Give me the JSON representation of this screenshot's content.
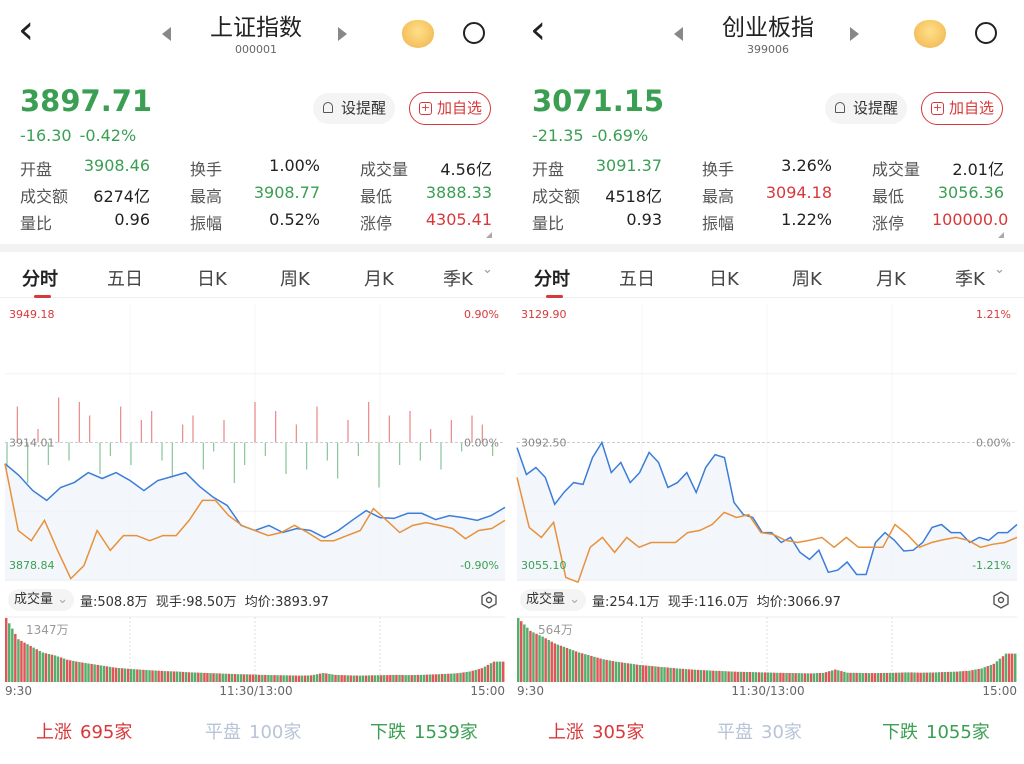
{
  "colors": {
    "up": "#d9383a",
    "down": "#3a9f52",
    "price_line": "#3b7dd8",
    "avg_line": "#e8913a",
    "flat": "#aab4c6"
  },
  "panels": [
    {
      "header": {
        "title": "上证指数",
        "code": "000001",
        "back_icon": "‹"
      },
      "quote": {
        "price": "3897.71",
        "change": "-16.30",
        "change_pct": "-0.42%"
      },
      "buttons": {
        "remind": "设提醒",
        "add_fav": "加自选",
        "plus": "+"
      },
      "stats": [
        [
          {
            "label": "开盘",
            "value": "3908.46",
            "color": "down"
          },
          {
            "label": "换手",
            "value": "1.00%",
            "color": "flat"
          },
          {
            "label": "成交量",
            "value": "4.56亿",
            "color": "flat"
          }
        ],
        [
          {
            "label": "成交额",
            "value": "6274亿",
            "color": "flat"
          },
          {
            "label": "最高",
            "value": "3908.77",
            "color": "down"
          },
          {
            "label": "最低",
            "value": "3888.33",
            "color": "down"
          }
        ],
        [
          {
            "label": "量比",
            "value": "0.96",
            "color": "flat"
          },
          {
            "label": "振幅",
            "value": "0.52%",
            "color": "flat"
          },
          {
            "label": "涨停",
            "value": "4305.41",
            "color": "up"
          }
        ]
      ],
      "tabs": [
        "分时",
        "五日",
        "日K",
        "周K",
        "月K",
        "季K"
      ],
      "volume_header": {
        "selector": "成交量",
        "info": "量:508.8万  现手:98.50万  均价:3893.97"
      },
      "breadth": {
        "up_label": "上涨",
        "up_count": "695家",
        "flat_label": "平盘",
        "flat_count": "100家",
        "down_label": "下跌",
        "down_count": "1539家"
      },
      "chart_data": {
        "type": "line",
        "y_top_label": "3949.18",
        "y_mid_label": "3914.01",
        "y_bottom_label": "3878.84",
        "pct_top_label": "0.90%",
        "pct_mid_label": "0.00%",
        "pct_bottom_label": "-0.90%",
        "ylim": [
          3878.84,
          3949.18
        ],
        "prev_close": 3914.01,
        "x_labels": [
          "9:30",
          "11:30/13:00",
          "15:00"
        ],
        "series": [
          {
            "values": [
              3908.6,
              3905.6,
              3901.7,
              3899.2,
              3902.5,
              3903.8,
              3906.3,
              3904.8,
              3906.3,
              3904.3,
              3901.7,
              3904.3,
              3905.3,
              3906.3,
              3902.8,
              3900.0,
              3897.9,
              3892.8,
              3891.5,
              3892.8,
              3891.0,
              3892.0,
              3891.5,
              3889.7,
              3891.5,
              3894.1,
              3896.6,
              3894.8,
              3894.6,
              3895.9,
              3895.9,
              3894.3,
              3895.3,
              3894.8,
              3894.1,
              3895.3,
              3897.4
            ]
          },
          {
            "values": [
              3908.6,
              3891.5,
              3888.9,
              3894.1,
              3886.4,
              3879.2,
              3882.5,
              3891.5,
              3886.4,
              3890.2,
              3890.2,
              3888.9,
              3890.2,
              3890.2,
              3894.1,
              3899.2,
              3899.2,
              3895.3,
              3892.8,
              3891.5,
              3890.2,
              3891.0,
              3892.8,
              3891.0,
              3888.9,
              3888.9,
              3890.2,
              3891.5,
              3897.1,
              3894.1,
              3891.0,
              3892.8,
              3893.5,
              3892.8,
              3892.0,
              3889.4,
              3891.5,
              3892.0,
              3894.1
            ]
          }
        ],
        "breadth_bars": [
          -6,
          8,
          -9,
          3,
          -5,
          10,
          -4,
          9,
          6,
          -7,
          -3,
          8,
          -5,
          5,
          7,
          -4,
          -8,
          4,
          6,
          -6,
          -2,
          5,
          -9,
          -5,
          9,
          -3,
          7,
          -7,
          4,
          -6,
          8,
          -4,
          -8,
          5,
          -3,
          9,
          -10,
          6,
          -5,
          7,
          -4,
          3,
          -6,
          5,
          -2,
          6,
          4,
          -3
        ],
        "volume": {
          "max_label": "1347万",
          "values": [
            1347,
            900,
            760,
            620,
            560,
            470,
            420,
            380,
            340,
            300,
            280,
            260,
            245,
            230,
            220,
            205,
            195,
            185,
            175,
            165,
            160,
            150,
            145,
            140,
            135,
            140,
            190,
            150,
            140,
            135,
            140,
            145,
            150,
            145,
            150,
            160,
            170,
            185,
            220,
            290,
            430
          ]
        }
      }
    },
    {
      "header": {
        "title": "创业板指",
        "code": "399006",
        "back_icon": "‹"
      },
      "quote": {
        "price": "3071.15",
        "change": "-21.35",
        "change_pct": "-0.69%"
      },
      "buttons": {
        "remind": "设提醒",
        "add_fav": "加自选",
        "plus": "+"
      },
      "stats": [
        [
          {
            "label": "开盘",
            "value": "3091.37",
            "color": "down"
          },
          {
            "label": "换手",
            "value": "3.26%",
            "color": "flat"
          },
          {
            "label": "成交量",
            "value": "2.01亿",
            "color": "flat"
          }
        ],
        [
          {
            "label": "成交额",
            "value": "4518亿",
            "color": "flat"
          },
          {
            "label": "最高",
            "value": "3094.18",
            "color": "up"
          },
          {
            "label": "最低",
            "value": "3056.36",
            "color": "down"
          }
        ],
        [
          {
            "label": "量比",
            "value": "0.93",
            "color": "flat"
          },
          {
            "label": "振幅",
            "value": "1.22%",
            "color": "flat"
          },
          {
            "label": "涨停",
            "value": "100000.0",
            "color": "up"
          }
        ]
      ],
      "tabs": [
        "分时",
        "五日",
        "日K",
        "周K",
        "月K",
        "季K"
      ],
      "volume_header": {
        "selector": "成交量",
        "info": "量:254.1万  现手:116.0万  均价:3066.97"
      },
      "breadth": {
        "up_label": "上涨",
        "up_count": "305家",
        "flat_label": "平盘",
        "flat_count": "30家",
        "down_label": "下跌",
        "down_count": "1055家"
      },
      "chart_data": {
        "type": "line",
        "y_top_label": "3129.90",
        "y_mid_label": "3092.50",
        "y_bottom_label": "3055.10",
        "pct_top_label": "1.21%",
        "pct_mid_label": "0.00%",
        "pct_bottom_label": "-1.21%",
        "ylim": [
          3055.1,
          3129.9
        ],
        "prev_close": 3092.5,
        "x_labels": [
          "9:30",
          "11:30/13:00",
          "15:00"
        ],
        "series": [
          {
            "values": [
              3091.1,
              3083.8,
              3085.7,
              3083.0,
              3075.7,
              3079.0,
              3081.6,
              3081.1,
              3088.4,
              3092.5,
              3084.3,
              3087.1,
              3081.6,
              3084.3,
              3089.8,
              3087.1,
              3080.3,
              3081.6,
              3084.3,
              3078.9,
              3085.7,
              3089.2,
              3088.4,
              3076.2,
              3072.9,
              3072.1,
              3068.0,
              3068.0,
              3065.3,
              3066.7,
              3062.6,
              3060.7,
              3063.2,
              3057.2,
              3057.8,
              3060.0,
              3056.6,
              3056.6,
              3065.3,
              3068.0,
              3065.9,
              3063.0,
              3063.2,
              3065.3,
              3069.4,
              3070.2,
              3068.0,
              3068.0,
              3065.3,
              3066.7,
              3065.9,
              3068.0,
              3068.0,
              3070.2
            ]
          },
          {
            "values": [
              3083.0,
              3069.4,
              3066.7,
              3070.8,
              3055.8,
              3054.5,
              3064.0,
              3066.7,
              3062.6,
              3066.7,
              3064.0,
              3065.3,
              3065.3,
              3065.3,
              3068.0,
              3068.6,
              3070.2,
              3073.5,
              3072.1,
              3072.9,
              3068.0,
              3067.5,
              3065.9,
              3065.3,
              3065.9,
              3066.7,
              3064.0,
              3066.7,
              3064.0,
              3064.0,
              3064.0,
              3070.2,
              3067.5,
              3064.0,
              3065.3,
              3066.1,
              3066.7,
              3065.9,
              3064.0,
              3064.8,
              3065.3,
              3066.7
            ]
          }
        ],
        "breadth_bars": [],
        "volume": {
          "max_label": "564万",
          "values": [
            564,
            450,
            400,
            340,
            300,
            260,
            230,
            200,
            180,
            165,
            150,
            140,
            130,
            120,
            112,
            105,
            100,
            95,
            90,
            88,
            85,
            82,
            80,
            78,
            76,
            80,
            110,
            82,
            80,
            78,
            80,
            82,
            85,
            82,
            84,
            88,
            92,
            100,
            120,
            160,
            250
          ]
        }
      }
    }
  ]
}
